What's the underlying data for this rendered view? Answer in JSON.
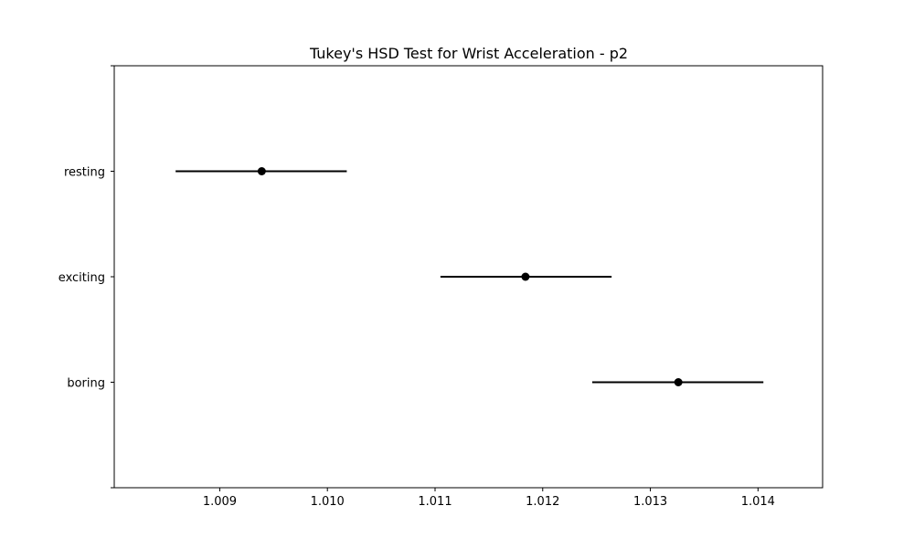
{
  "chart_data": {
    "type": "scatter",
    "title": "Tukey's HSD Test for Wrist Acceleration - p2",
    "xlabel": "",
    "ylabel": "",
    "xlim": [
      1.00802,
      1.0146
    ],
    "x_ticks": [
      1.009,
      1.01,
      1.011,
      1.012,
      1.013,
      1.014
    ],
    "x_tick_labels": [
      "1.009",
      "1.010",
      "1.011",
      "1.012",
      "1.013",
      "1.014"
    ],
    "categories": [
      "resting",
      "exciting",
      "boring"
    ],
    "groups": [
      {
        "name": "resting",
        "mean": 1.00939,
        "lower": 1.00859,
        "upper": 1.01018
      },
      {
        "name": "exciting",
        "mean": 1.01184,
        "lower": 1.01105,
        "upper": 1.01264
      },
      {
        "name": "boring",
        "mean": 1.01326,
        "lower": 1.01246,
        "upper": 1.01405
      }
    ],
    "grid": false,
    "color": "#000000"
  }
}
